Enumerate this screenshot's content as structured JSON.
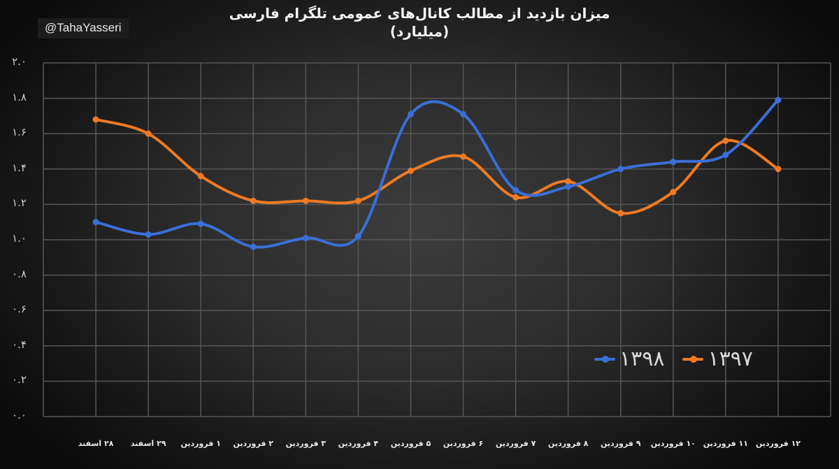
{
  "watermark": "@TahaYasseri",
  "title_line1": "میزان بازدید از مطالب کانال‌های عمومی تلگرام فارسی",
  "title_line2": "(میلیارد)",
  "colors": {
    "series_1398": "#3a6fd8",
    "series_1397": "#ef7a22",
    "gridline": "#575757",
    "frame": "#5e5e5e"
  },
  "legend": [
    {
      "label": "۱۳۹۸",
      "series": "1398"
    },
    {
      "label": "۱۳۹۷",
      "series": "1397"
    }
  ],
  "chart_data": {
    "type": "line",
    "title": "میزان بازدید از مطالب کانال‌های عمومی تلگرام فارسی (میلیارد)",
    "xlabel": "",
    "ylabel": "",
    "ylim": [
      0,
      2.0
    ],
    "yticks": [
      "۰.۰",
      "۰.۲",
      "۰.۴",
      "۰.۶",
      "۰.۸",
      "۱.۰",
      "۱.۲",
      "۱.۴",
      "۱.۶",
      "۱.۸",
      "۲.۰"
    ],
    "grid": true,
    "smooth": true,
    "legend_position": "lower right (inside plot)",
    "categories": [
      "۲۸ اسفند",
      "۲۹ اسفند",
      "۱ فروردین",
      "۲ فروردین",
      "۳ فروردین",
      "۴ فروردین",
      "۵ فروردین",
      "۶ فروردین",
      "۷ فروردین",
      "۸ فروردین",
      "۹ فروردین",
      "۱۰ فروردین",
      "۱۱ فروردین",
      "۱۲ فروردین"
    ],
    "series": [
      {
        "name": "۱۳۹۸",
        "color": "#3a6fd8",
        "values": [
          1.1,
          1.03,
          1.09,
          0.96,
          1.01,
          1.02,
          1.71,
          1.71,
          1.28,
          1.3,
          1.4,
          1.44,
          1.48,
          1.79
        ]
      },
      {
        "name": "۱۳۹۷",
        "color": "#ef7a22",
        "values": [
          1.68,
          1.6,
          1.36,
          1.22,
          1.22,
          1.22,
          1.39,
          1.47,
          1.24,
          1.33,
          1.15,
          1.27,
          1.56,
          1.4
        ]
      }
    ]
  }
}
